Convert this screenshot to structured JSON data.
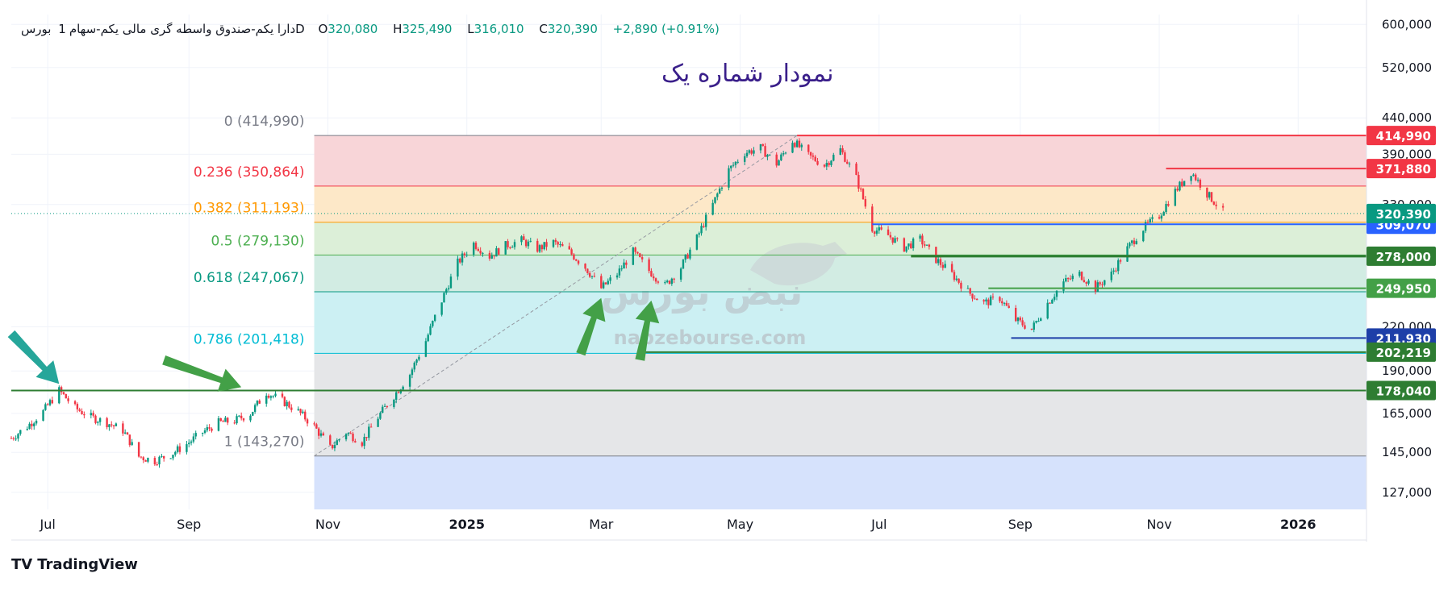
{
  "legend": {
    "name": "دارا یکم-صندوق واسطه گری مالی یکم-سهام",
    "interval": "1",
    "exchange": "بورس",
    "timeframe": "D",
    "open_label": "O",
    "open": "320,080",
    "high_label": "H",
    "high": "325,490",
    "low_label": "L",
    "low": "316,010",
    "close_label": "C",
    "close": "320,390",
    "change": "+2,890 (+0.91%)"
  },
  "title": "نمودار شماره یک",
  "watermark": {
    "text": "nabzebourse.com",
    "logo_text": "نبض بورس"
  },
  "brand": {
    "logo": "TV",
    "name": "TradingView"
  },
  "colors": {
    "up": "#089981",
    "down": "#f23645",
    "arrow": "#43a047",
    "arrow_teal": "#26a69a"
  },
  "chart_data": {
    "type": "candlestick",
    "y_scale": "log",
    "ylim": [
      120000,
      620000
    ],
    "y_ticks": [
      {
        "value": 600000,
        "label": "600,000"
      },
      {
        "value": 520000,
        "label": "520,000"
      },
      {
        "value": 440000,
        "label": "440,000"
      },
      {
        "value": 390000,
        "label": "390,000"
      },
      {
        "value": 330000,
        "label": "330,000"
      },
      {
        "value": 220000,
        "label": "220,000"
      },
      {
        "value": 190000,
        "label": "190,000"
      },
      {
        "value": 165000,
        "label": "165,000"
      },
      {
        "value": 145000,
        "label": "145,000"
      },
      {
        "value": 127000,
        "label": "127,000"
      }
    ],
    "x_range": [
      "2024-06-15",
      "2026-01-31"
    ],
    "x_ticks": [
      {
        "date": "2024-07-01",
        "label": "Jul",
        "bold": false
      },
      {
        "date": "2024-09-01",
        "label": "Sep",
        "bold": false
      },
      {
        "date": "2024-11-01",
        "label": "Nov",
        "bold": false
      },
      {
        "date": "2025-01-01",
        "label": "2025",
        "bold": true
      },
      {
        "date": "2025-03-01",
        "label": "Mar",
        "bold": false
      },
      {
        "date": "2025-05-01",
        "label": "May",
        "bold": false
      },
      {
        "date": "2025-07-01",
        "label": "Jul",
        "bold": false
      },
      {
        "date": "2025-09-01",
        "label": "Sep",
        "bold": false
      },
      {
        "date": "2025-11-01",
        "label": "Nov",
        "bold": false
      },
      {
        "date": "2026-01-01",
        "label": "2026",
        "bold": true
      }
    ],
    "fibonacci": {
      "start_date": "2024-10-26",
      "end_date": "2026-01-31",
      "trend_from": {
        "date": "2024-10-26",
        "value": 143270
      },
      "trend_to": {
        "date": "2025-05-26",
        "value": 414990
      },
      "levels": [
        {
          "ratio": 0,
          "value": 414990,
          "label": "0 (414,990)",
          "color": "#787b86",
          "fill": "#f8d5d8"
        },
        {
          "ratio": 0.236,
          "value": 350864,
          "label": "0.236 (350,864)",
          "color": "#f23645",
          "fill": "#fde8c8"
        },
        {
          "ratio": 0.382,
          "value": 311193,
          "label": "0.382 (311,193)",
          "color": "#ff9800",
          "fill": "#dcefd8"
        },
        {
          "ratio": 0.5,
          "value": 279130,
          "label": "0.5 (279,130)",
          "color": "#4caf50",
          "fill": "#d2ece3"
        },
        {
          "ratio": 0.618,
          "value": 247067,
          "label": "0.618 (247,067)",
          "color": "#089981",
          "fill": "#ccf0f3"
        },
        {
          "ratio": 0.786,
          "value": 201418,
          "label": "0.786 (201,418)",
          "color": "#00bcd4",
          "fill": "#e5e6e8"
        },
        {
          "ratio": 1,
          "value": 143270,
          "label": "1 (143,270)",
          "color": "#787b86",
          "fill": "#d6e2fc"
        }
      ],
      "bottom_value": 120000
    },
    "price_lines": [
      {
        "value": 414990,
        "label": "414,990",
        "color": "#f23645",
        "from": "2025-05-26",
        "width": 2
      },
      {
        "value": 371880,
        "label": "371,880",
        "color": "#f23645",
        "from": "2025-11-04",
        "width": 2
      },
      {
        "value": 309070,
        "label": "309,070",
        "color": "#2962ff",
        "from": "2025-06-28",
        "width": 2
      },
      {
        "value": 278000,
        "label": "278,000",
        "color": "#2e7d32",
        "from": "2025-07-15",
        "width": 3
      },
      {
        "value": 249950,
        "label": "249,950",
        "color": "#43a047",
        "from": "2025-08-18",
        "width": 2
      },
      {
        "value": 211930,
        "label": "211,930",
        "color": "#1e3fa8",
        "from": "2025-08-28",
        "width": 2
      },
      {
        "value": 202219,
        "label": "202,219",
        "color": "#2e7d32",
        "from": "2025-03-20",
        "width": 2
      },
      {
        "value": 178040,
        "label": "178,040",
        "color": "#2e7d32",
        "from": "2024-06-15",
        "width": 2
      }
    ],
    "last_price": {
      "value": 320390,
      "label": "320,390",
      "color": "#089981"
    },
    "path": [
      [
        "2024-06-15",
        152000
      ],
      [
        "2024-06-22",
        158000
      ],
      [
        "2024-06-29",
        166000
      ],
      [
        "2024-07-06",
        178000
      ],
      [
        "2024-07-13",
        168000
      ],
      [
        "2024-07-20",
        163000
      ],
      [
        "2024-07-27",
        160000
      ],
      [
        "2024-08-03",
        156000
      ],
      [
        "2024-08-10",
        143000
      ],
      [
        "2024-08-17",
        141000
      ],
      [
        "2024-08-24",
        144000
      ],
      [
        "2024-08-31",
        149000
      ],
      [
        "2024-09-07",
        155000
      ],
      [
        "2024-09-14",
        160000
      ],
      [
        "2024-09-21",
        161000
      ],
      [
        "2024-09-28",
        165000
      ],
      [
        "2024-10-05",
        177000
      ],
      [
        "2024-10-12",
        172000
      ],
      [
        "2024-10-19",
        166000
      ],
      [
        "2024-10-26",
        158000
      ],
      [
        "2024-11-02",
        147000
      ],
      [
        "2024-11-09",
        155000
      ],
      [
        "2024-11-16",
        150000
      ],
      [
        "2024-11-23",
        163000
      ],
      [
        "2024-11-30",
        175000
      ],
      [
        "2024-12-07",
        188000
      ],
      [
        "2024-12-14",
        210000
      ],
      [
        "2024-12-21",
        240000
      ],
      [
        "2024-12-28",
        272000
      ],
      [
        "2025-01-04",
        290000
      ],
      [
        "2025-01-11",
        278000
      ],
      [
        "2025-01-18",
        288000
      ],
      [
        "2025-01-25",
        293000
      ],
      [
        "2025-02-01",
        285000
      ],
      [
        "2025-02-08",
        291000
      ],
      [
        "2025-02-15",
        282000
      ],
      [
        "2025-02-22",
        268000
      ],
      [
        "2025-03-01",
        250000
      ],
      [
        "2025-03-08",
        262000
      ],
      [
        "2025-03-15",
        282000
      ],
      [
        "2025-03-22",
        265000
      ],
      [
        "2025-03-29",
        252000
      ],
      [
        "2025-04-05",
        268000
      ],
      [
        "2025-04-12",
        295000
      ],
      [
        "2025-04-19",
        330000
      ],
      [
        "2025-04-26",
        370000
      ],
      [
        "2025-05-03",
        392000
      ],
      [
        "2025-05-10",
        398000
      ],
      [
        "2025-05-17",
        378000
      ],
      [
        "2025-05-24",
        408000
      ],
      [
        "2025-05-31",
        388000
      ],
      [
        "2025-06-07",
        376000
      ],
      [
        "2025-06-14",
        396000
      ],
      [
        "2025-06-21",
        360000
      ],
      [
        "2025-06-28",
        305000
      ],
      [
        "2025-07-05",
        298000
      ],
      [
        "2025-07-12",
        286000
      ],
      [
        "2025-07-19",
        294000
      ],
      [
        "2025-07-26",
        275000
      ],
      [
        "2025-08-02",
        262000
      ],
      [
        "2025-08-09",
        247000
      ],
      [
        "2025-08-16",
        238000
      ],
      [
        "2025-08-23",
        242000
      ],
      [
        "2025-08-30",
        225000
      ],
      [
        "2025-09-06",
        218000
      ],
      [
        "2025-09-13",
        238000
      ],
      [
        "2025-09-20",
        255000
      ],
      [
        "2025-09-27",
        262000
      ],
      [
        "2025-10-04",
        250000
      ],
      [
        "2025-10-11",
        262000
      ],
      [
        "2025-10-18",
        285000
      ],
      [
        "2025-10-25",
        305000
      ],
      [
        "2025-11-01",
        318000
      ],
      [
        "2025-11-08",
        345000
      ],
      [
        "2025-11-15",
        368000
      ],
      [
        "2025-11-22",
        342000
      ],
      [
        "2025-11-29",
        322000
      ]
    ],
    "arrows": [
      {
        "from": {
          "date": "2024-06-15",
          "value": 215000
        },
        "to": {
          "date": "2024-07-06",
          "value": 182000
        },
        "color": "#26a69a"
      },
      {
        "from": {
          "date": "2024-08-21",
          "value": 197000
        },
        "to": {
          "date": "2024-09-24",
          "value": 180000
        },
        "color": "#43a047"
      },
      {
        "from": {
          "date": "2025-02-20",
          "value": 201000
        },
        "to": {
          "date": "2025-03-01",
          "value": 242000
        },
        "color": "#43a047"
      },
      {
        "from": {
          "date": "2025-03-18",
          "value": 197000
        },
        "to": {
          "date": "2025-03-23",
          "value": 240000
        },
        "color": "#43a047"
      }
    ]
  }
}
